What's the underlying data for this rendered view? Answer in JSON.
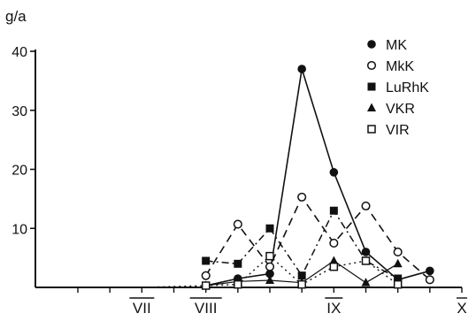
{
  "chart_data": {
    "type": "line",
    "title": "",
    "ylabel": "g/a",
    "xlabel": "",
    "ylim": [
      0,
      40
    ],
    "xlim": [
      7,
      10
    ],
    "yticks": [
      10,
      20,
      30,
      40
    ],
    "x_ticks": [
      {
        "value": 7.5,
        "label": "VII"
      },
      {
        "value": 8.0,
        "label": "VIII"
      },
      {
        "value": 9.0,
        "label": "IX"
      },
      {
        "value": 10.0,
        "label": "X"
      }
    ],
    "minor_ticks": [
      7.0,
      7.25,
      7.5,
      7.75,
      8.0,
      8.25,
      8.5,
      8.75,
      9.0,
      9.25,
      9.5,
      9.75,
      10.0
    ],
    "legend_position": "top-right",
    "grid": false,
    "series": [
      {
        "name": "MK",
        "marker": "filled-circle",
        "line": "solid",
        "x": [
          8.0,
          8.25,
          8.5,
          8.75,
          9.0,
          9.25,
          9.5,
          9.75
        ],
        "y": [
          0.3,
          1.5,
          2.3,
          37,
          19.5,
          6,
          1.3,
          2.8
        ]
      },
      {
        "name": "MkK",
        "marker": "open-circle",
        "line": "dashed",
        "x": [
          8.0,
          8.25,
          8.5,
          8.75,
          9.0,
          9.25,
          9.5,
          9.75
        ],
        "y": [
          2.0,
          10.7,
          3.5,
          15.3,
          7.5,
          13.8,
          6.0,
          1.3
        ]
      },
      {
        "name": "LuRhK",
        "marker": "filled-square",
        "line": "dash-dot",
        "x": [
          8.0,
          8.25,
          8.5,
          8.75,
          9.0,
          9.25,
          9.5
        ],
        "y": [
          4.5,
          4.0,
          10.0,
          2.0,
          13.0,
          4.5,
          1.5
        ]
      },
      {
        "name": "VKR",
        "marker": "filled-triangle",
        "line": "solid-thin",
        "x": [
          8.0,
          8.25,
          8.5,
          8.75,
          9.0,
          9.25,
          9.5
        ],
        "y": [
          0.3,
          1.0,
          1.2,
          0.8,
          4.5,
          0.8,
          4.0
        ]
      },
      {
        "name": "VIR",
        "marker": "open-square",
        "line": "dotted",
        "x": [
          7.5,
          8.0,
          8.25,
          8.5,
          8.75,
          9.0,
          9.25,
          9.5
        ],
        "y": [
          0.0,
          0.3,
          0.5,
          5.3,
          0.5,
          3.5,
          4.5,
          0.5
        ]
      }
    ]
  }
}
